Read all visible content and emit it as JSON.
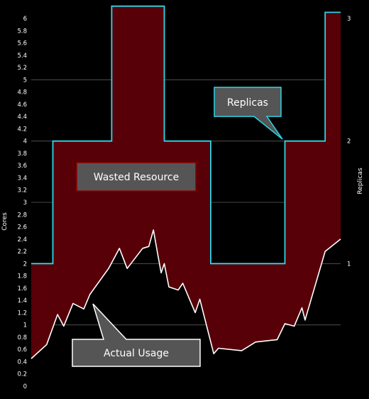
{
  "chart_data": {
    "type": "line",
    "ylabel": "Cores",
    "y2label": "Replicas",
    "ylim": [
      0,
      6.2
    ],
    "y2lim": [
      0,
      3
    ],
    "y_ticks": [
      "0",
      "0.2",
      "0.4",
      "0.6",
      "0.8",
      "1",
      "1.2",
      "1.4",
      "1.6",
      "1.8",
      "2",
      "2.2",
      "2.4",
      "2.6",
      "2.8",
      "3",
      "3.2",
      "3.4",
      "3.6",
      "3.8",
      "4",
      "4.2",
      "4.4",
      "4.6",
      "4.8",
      "5",
      "5.2",
      "5.4",
      "5.6",
      "5.8",
      "6"
    ],
    "y2_ticks": [
      "1",
      "2",
      "3"
    ],
    "grid": "horizontal",
    "series": [
      {
        "name": "Replicas",
        "color": "#2fd6e8",
        "step": true,
        "values": [
          [
            0,
            2
          ],
          [
            7,
            2
          ],
          [
            7,
            4
          ],
          [
            26,
            4
          ],
          [
            26,
            6.2
          ],
          [
            43,
            6.2
          ],
          [
            43,
            4
          ],
          [
            58,
            4
          ],
          [
            58,
            2
          ],
          [
            82,
            2
          ],
          [
            82,
            4
          ],
          [
            95,
            4
          ],
          [
            95,
            6.1
          ],
          [
            100,
            6.1
          ]
        ]
      },
      {
        "name": "Actual Usage",
        "color": "#ffffff",
        "values": [
          [
            0,
            0.45
          ],
          [
            5,
            0.68
          ],
          [
            8.5,
            1.17
          ],
          [
            10.5,
            0.98
          ],
          [
            13.5,
            1.35
          ],
          [
            17,
            1.26
          ],
          [
            19,
            1.5
          ],
          [
            25,
            1.92
          ],
          [
            28.5,
            2.25
          ],
          [
            31,
            1.92
          ],
          [
            36,
            2.25
          ],
          [
            38,
            2.28
          ],
          [
            39.5,
            2.55
          ],
          [
            41,
            2.12
          ],
          [
            42,
            1.85
          ],
          [
            43,
            2.0
          ],
          [
            44.5,
            1.62
          ],
          [
            47.5,
            1.57
          ],
          [
            49,
            1.68
          ],
          [
            53,
            1.2
          ],
          [
            54.5,
            1.42
          ],
          [
            59,
            0.53
          ],
          [
            60.5,
            0.62
          ],
          [
            68,
            0.58
          ],
          [
            72.5,
            0.72
          ],
          [
            79.5,
            0.76
          ],
          [
            82,
            1.02
          ],
          [
            85,
            0.98
          ],
          [
            87.5,
            1.28
          ],
          [
            88.5,
            1.08
          ],
          [
            95,
            2.2
          ],
          [
            100,
            2.4
          ]
        ]
      }
    ],
    "annotations": [
      {
        "name": "wasted-resource",
        "text": "Wasted Resource",
        "fill": "#555555",
        "border": "#8b0000"
      },
      {
        "name": "replicas",
        "text": "Replicas",
        "fill": "#555555",
        "border": "#2fd6e8"
      },
      {
        "name": "actual-usage",
        "text": "Actual Usage",
        "fill": "#555555",
        "border": "#ffffff"
      }
    ],
    "wasted_fill_color": "#570008"
  }
}
